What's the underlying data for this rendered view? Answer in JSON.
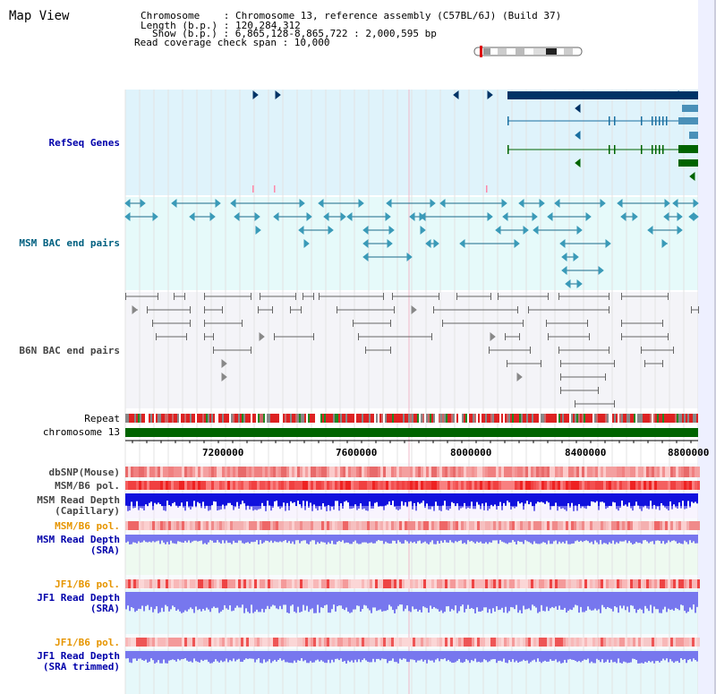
{
  "header": {
    "title": "Map View",
    "info_lines": [
      "Chromosome    : Chromosome 13, reference assembly (C57BL/6J) (Build 37)",
      "Length (b.p.) : 120,284,312",
      "Show (b.p.) : 6,865,128-8,865,722 : 2,000,595 bp",
      "Read coverage check span : 10,000"
    ]
  },
  "tracks": {
    "refseq": "RefSeq Genes",
    "msm_bac": "MSM BAC end pairs",
    "b6n_bac": "B6N BAC end pairs",
    "repeat": "Repeat",
    "chromosome": "chromosome 13",
    "dbsnp": "dbSNP(Mouse)",
    "msm_b6_pol_1": "MSM/B6 pol.",
    "msm_read_depth_cap": "MSM Read Depth",
    "msm_read_depth_cap_sub": "(Capillary)",
    "msm_b6_pol_2": "MSM/B6 pol.",
    "msm_read_depth_sra": "MSM Read Depth",
    "msm_read_depth_sra_sub": "(SRA)",
    "jf1_b6_pol_1": "JF1/B6 pol.",
    "jf1_read_depth_sra": "JF1 Read Depth",
    "jf1_read_depth_sra_sub": "(SRA)",
    "jf1_b6_pol_2": "JF1/B6 pol.",
    "jf1_read_depth_trim": "JF1 Read Depth",
    "jf1_read_depth_trim_sub": "(SRA trimmed)"
  },
  "axis": {
    "ticks": [
      "7200000",
      "7600000",
      "8000000",
      "8400000",
      "8800000"
    ]
  },
  "colors": {
    "refseq_bg": "#dff3fb",
    "msm_bg": "#e6fafa",
    "b6n_bg": "#f4f4f8",
    "chromosome": "#006400",
    "refseq_dark": "#003366",
    "refseq_teal": "#1a6fa0",
    "refseq_green": "#006400",
    "msm_line": "#1a6a8a",
    "b6n_line": "#666666",
    "depth_blue": "#1111dd",
    "depth_light": "#7777ee"
  }
}
